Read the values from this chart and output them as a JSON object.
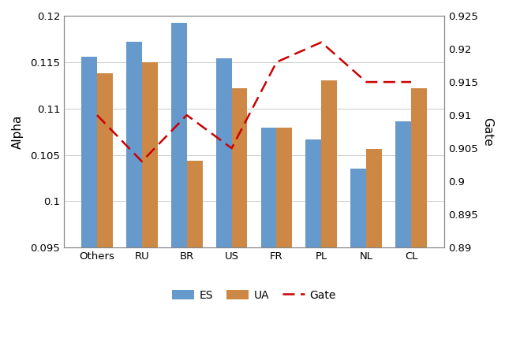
{
  "categories": [
    "Others",
    "RU",
    "BR",
    "US",
    "FR",
    "PL",
    "NL",
    "CL"
  ],
  "ES": [
    0.1156,
    0.1172,
    0.1192,
    0.1154,
    0.1079,
    0.1067,
    0.1035,
    0.1086
  ],
  "UA": [
    0.1138,
    0.115,
    0.1044,
    0.1122,
    0.1079,
    0.113,
    0.1056,
    0.1122
  ],
  "Gate": [
    0.91,
    0.903,
    0.91,
    0.905,
    0.918,
    0.921,
    0.915,
    0.915
  ],
  "ES_color": "#6699cc",
  "UA_color": "#cc8844",
  "Gate_color": "#cc0000",
  "ylim_left": [
    0.095,
    0.12
  ],
  "ylim_right": [
    0.89,
    0.925
  ],
  "ylabel_left": "Alpha",
  "ylabel_right": "Gate",
  "yticks_left": [
    0.095,
    0.1,
    0.105,
    0.11,
    0.115,
    0.12
  ],
  "yticks_right": [
    0.89,
    0.895,
    0.9,
    0.905,
    0.91,
    0.915,
    0.92,
    0.925
  ],
  "legend_labels": [
    "ES",
    "UA",
    "Gate"
  ],
  "bar_width": 0.35
}
